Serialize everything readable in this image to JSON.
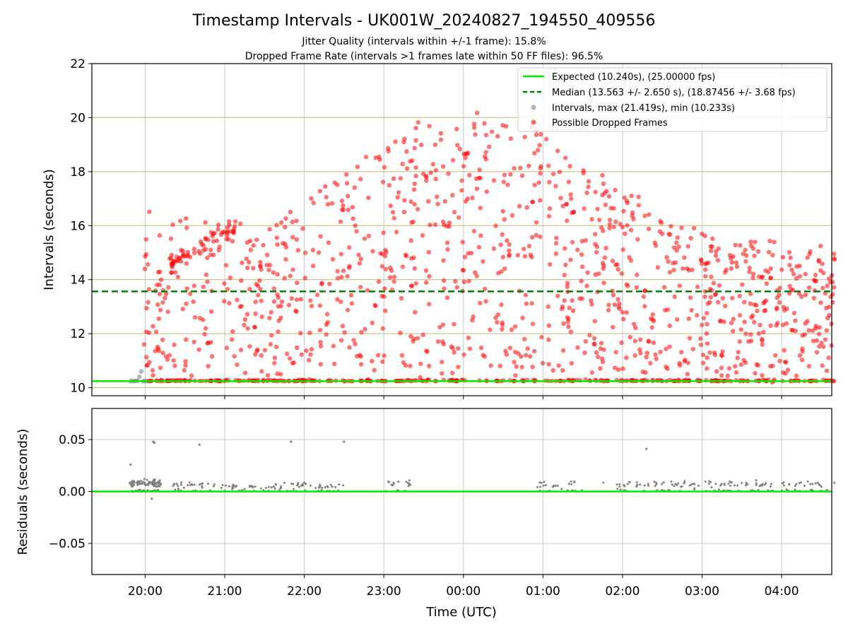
{
  "chart_data": {
    "type": "scatter",
    "title": "Timestamp Intervals - UK001W_20240827_194550_409556",
    "subtitles": [
      "Jitter Quality (intervals within +/-1 frame): 15.8%",
      "Dropped Frame Rate (intervals >1 frames late within 50 FF files): 96.5%"
    ],
    "xlabel": "Time (UTC)",
    "x_axis_kind": "time-of-day",
    "x_ticks": [
      "20:00",
      "21:00",
      "22:00",
      "23:00",
      "00:00",
      "01:00",
      "02:00",
      "03:00",
      "04:00"
    ],
    "grid": true,
    "top_panel": {
      "ylabel": "Intervals (seconds)",
      "ylim": [
        9.7,
        22.0
      ],
      "y_ticks": [
        "10",
        "12",
        "14",
        "16",
        "18",
        "20",
        "22"
      ],
      "expected_interval": 10.24,
      "median_interval": 13.563,
      "legend_position": "upper-right",
      "legend": [
        {
          "label": "Expected (10.240s), (25.00000 fps)",
          "color": "#00ee00",
          "style": "solid"
        },
        {
          "label": "Median (13.563 +/- 2.650 s), (18.87456 +/- 3.68 fps)",
          "color": "#008000",
          "style": "dashed"
        },
        {
          "label": "Intervals, max (21.419s), min (10.233s)",
          "color": "#808080",
          "style": "point"
        },
        {
          "label": "Possible Dropped Frames",
          "color": "#ff0000",
          "style": "point"
        }
      ],
      "normal_intervals": {
        "x_range": [
          "19:49",
          "20:01"
        ],
        "values": [
          10.24,
          10.25,
          10.24,
          10.26,
          10.25,
          10.4,
          10.6,
          10.24,
          10.25,
          10.24
        ]
      },
      "dropped_frames": {
        "count_estimate": 1520,
        "x_range": [
          "19:59",
          "04:40"
        ],
        "baseline_value": 10.24,
        "max": 21.419
      }
    },
    "bottom_panel": {
      "ylabel": "Residuals (seconds)",
      "ylim": [
        -0.08,
        0.08
      ],
      "y_ticks": [
        "0.05",
        "0.00",
        "−0.05"
      ],
      "zero_line_color": "#00ee00",
      "residual_clusters": [
        {
          "x_range": [
            "19:48",
            "20:12"
          ],
          "typical": 0.008
        },
        {
          "x_range": [
            "20:20",
            "22:00"
          ],
          "typical": 0.006
        },
        {
          "x_range": [
            "22:00",
            "22:30"
          ],
          "typical": 0.005
        },
        {
          "x_range": [
            "23:00",
            "23:20"
          ],
          "typical": 0.008
        },
        {
          "x_range": [
            "00:55",
            "01:30"
          ],
          "typical": 0.007
        },
        {
          "x_range": [
            "01:45",
            "04:40"
          ],
          "typical": 0.007
        }
      ],
      "outliers": [
        {
          "x": "19:49",
          "y": 0.026
        },
        {
          "x": "20:06",
          "y": 0.048
        },
        {
          "x": "20:07",
          "y": 0.047
        },
        {
          "x": "20:41",
          "y": 0.045
        },
        {
          "x": "21:50",
          "y": 0.048
        },
        {
          "x": "22:30",
          "y": 0.048
        },
        {
          "x": "02:18",
          "y": 0.041
        },
        {
          "x": "20:05",
          "y": -0.007
        }
      ]
    },
    "colors": {
      "dropped": "#ff0000",
      "normal": "#808080",
      "expected": "#00ee00",
      "median": "#008000",
      "grid_top": "#c8b675",
      "grid": "#c8c8c8"
    }
  }
}
